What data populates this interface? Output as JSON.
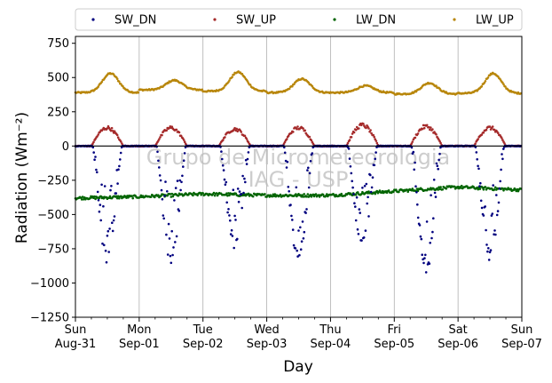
{
  "chart_data": {
    "type": "scatter",
    "title": "",
    "xlabel": "Day",
    "ylabel": "Radiation (Wm⁻²)",
    "ylim": [
      -1250,
      800
    ],
    "xlim": [
      0,
      7
    ],
    "yticks": [
      -1250,
      -1000,
      -750,
      -500,
      -250,
      0,
      250,
      500,
      750
    ],
    "ytick_labels": [
      "−1250",
      "−1000",
      "−750",
      "−500",
      "−250",
      "0",
      "250",
      "500",
      "750"
    ],
    "xticks": [
      {
        "x": 0,
        "line1": "Sun",
        "line2": "Aug-31"
      },
      {
        "x": 1,
        "line1": "Mon",
        "line2": "Sep-01"
      },
      {
        "x": 2,
        "line1": "Tue",
        "line2": "Sep-02"
      },
      {
        "x": 3,
        "line1": "Wed",
        "line2": "Sep-03"
      },
      {
        "x": 4,
        "line1": "Thu",
        "line2": "Sep-04"
      },
      {
        "x": 5,
        "line1": "Fri",
        "line2": "Sep-05"
      },
      {
        "x": 6,
        "line1": "Sat",
        "line2": "Sep-06"
      },
      {
        "x": 7,
        "line1": "Sun",
        "line2": "Sep-07"
      }
    ],
    "grid": "vertical",
    "zero_line": 0,
    "legend_position": "top",
    "watermark": [
      "Grupo de Micrometeorologia",
      "IAG - USP"
    ],
    "series": [
      {
        "name": "SW_DN",
        "color": "#00007f",
        "kind": "sw_dn",
        "daily_minima": [
          -870,
          -880,
          -760,
          -870,
          -770,
          -930,
          -850
        ],
        "x": [
          0,
          0.3,
          0.34,
          0.38,
          0.42,
          0.46,
          0.5,
          0.54,
          0.58,
          0.62,
          0.66,
          0.7,
          7
        ],
        "values": [
          0,
          0,
          -300,
          -550,
          -750,
          -850,
          -760,
          -600,
          -300,
          -100,
          -20,
          0,
          0
        ]
      },
      {
        "name": "SW_UP",
        "color": "#a52a2a",
        "kind": "sw_up",
        "daily_maxima": [
          140,
          140,
          130,
          140,
          160,
          150,
          140
        ]
      },
      {
        "name": "LW_DN",
        "color": "#006400",
        "kind": "lw_dn",
        "x": [
          0,
          1,
          2,
          3,
          4,
          5,
          6,
          7
        ],
        "values": [
          -380,
          -370,
          -350,
          -360,
          -360,
          -330,
          -300,
          -320
        ]
      },
      {
        "name": "LW_UP",
        "color": "#b8860b",
        "kind": "lw_up",
        "daily_base": [
          390,
          410,
          400,
          390,
          390,
          380,
          385
        ],
        "daily_peak": [
          530,
          480,
          540,
          490,
          440,
          460,
          530
        ]
      }
    ]
  }
}
